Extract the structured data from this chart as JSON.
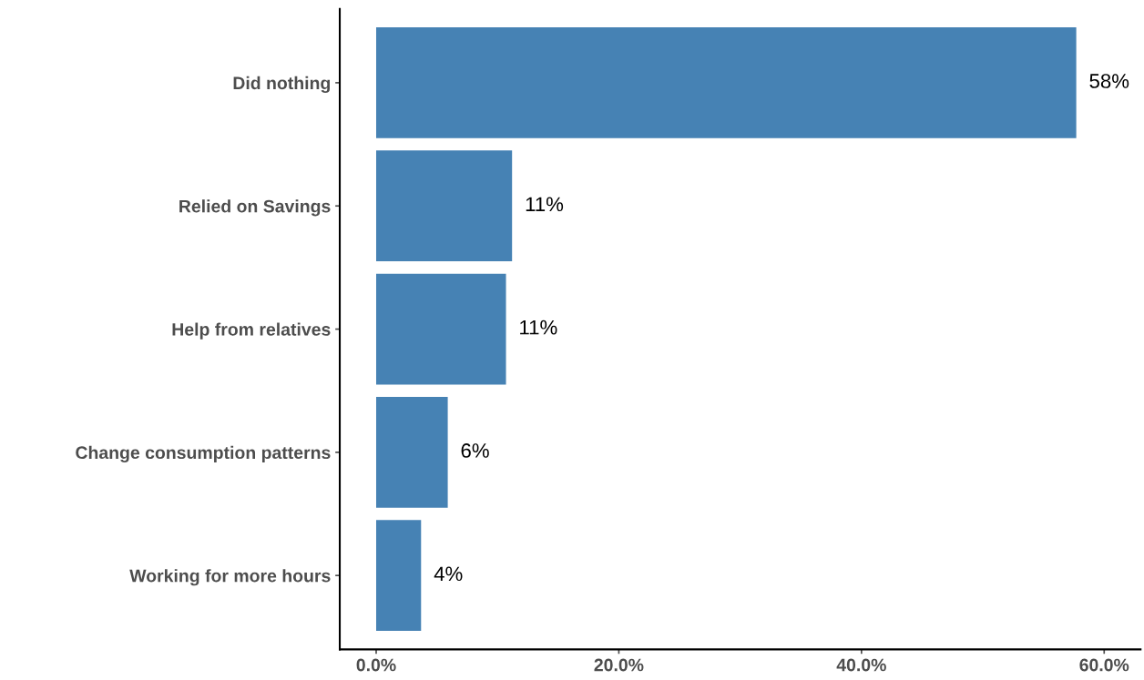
{
  "chart_data": {
    "type": "bar",
    "orientation": "horizontal",
    "categories": [
      "Did nothing",
      "Relied on Savings",
      "Help from relatives",
      "Change consumption patterns",
      "Working for more hours"
    ],
    "values": [
      57.7,
      11.2,
      10.7,
      5.9,
      3.7
    ],
    "value_labels": [
      "58%",
      "11%",
      "11%",
      "6%",
      "4%"
    ],
    "color": "#4682b4",
    "xlim": [
      -3,
      63
    ],
    "xticks": [
      {
        "value": 0,
        "label": "0.0%"
      },
      {
        "value": 20,
        "label": "20.0%"
      },
      {
        "value": 40,
        "label": "40.0%"
      },
      {
        "value": 60,
        "label": "60.0%"
      }
    ],
    "grid": false
  }
}
